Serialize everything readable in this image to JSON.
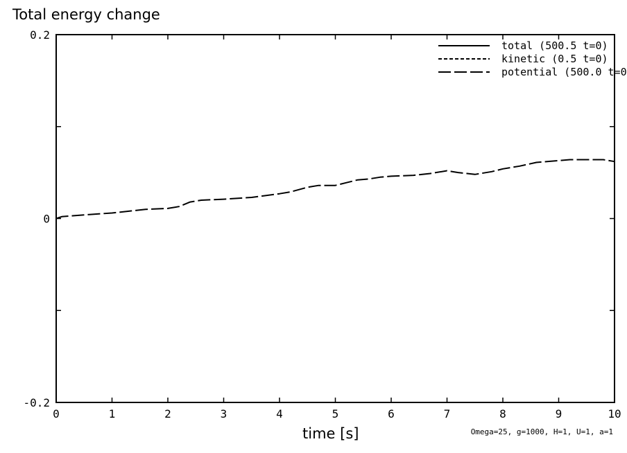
{
  "chart_data": {
    "type": "line",
    "title": "Total energy change",
    "xlabel": "time [s]",
    "ylabel": "",
    "xlim": [
      0,
      10
    ],
    "ylim": [
      -0.2,
      0.2
    ],
    "x_ticks": [
      0,
      1,
      2,
      3,
      4,
      5,
      6,
      7,
      8,
      9,
      10
    ],
    "x_tick_labels": [
      "0",
      "1",
      "2",
      "3",
      "4",
      "5",
      "6",
      "7",
      "8",
      "9",
      "10"
    ],
    "y_ticks": [
      -0.2,
      -0.1,
      0,
      0.1,
      0.2
    ],
    "y_tick_labels": [
      "-0.2",
      "",
      "0",
      "",
      "0.2"
    ],
    "grid": false,
    "legend_position": "top-right",
    "annotation": "Omega=25, g=1000, H=1, U=1, a=1",
    "series": [
      {
        "name": "total (500.5 t=0)",
        "style": "solid",
        "x": [],
        "y": []
      },
      {
        "name": "kinetic (0.5 t=0)",
        "style": "dotted",
        "x": [],
        "y": []
      },
      {
        "name": "potential (500.0 t=0",
        "style": "long-dash",
        "x": [
          0,
          0.1,
          0.5,
          1.0,
          1.3,
          1.6,
          2.0,
          2.2,
          2.4,
          2.6,
          3.0,
          3.5,
          4.0,
          4.2,
          4.5,
          4.7,
          5.0,
          5.2,
          5.4,
          5.6,
          5.8,
          6.0,
          6.4,
          6.7,
          7.0,
          7.2,
          7.5,
          7.8,
          8.0,
          8.3,
          8.6,
          9.0,
          9.2,
          9.5,
          9.8,
          10.0
        ],
        "y": [
          0,
          0.002,
          0.004,
          0.006,
          0.008,
          0.01,
          0.011,
          0.013,
          0.018,
          0.02,
          0.021,
          0.023,
          0.027,
          0.029,
          0.034,
          0.036,
          0.036,
          0.039,
          0.042,
          0.043,
          0.045,
          0.046,
          0.047,
          0.049,
          0.052,
          0.05,
          0.048,
          0.051,
          0.054,
          0.057,
          0.061,
          0.063,
          0.064,
          0.064,
          0.064,
          0.062
        ]
      }
    ]
  },
  "colors": {
    "line": "#000000",
    "background": "#ffffff"
  }
}
